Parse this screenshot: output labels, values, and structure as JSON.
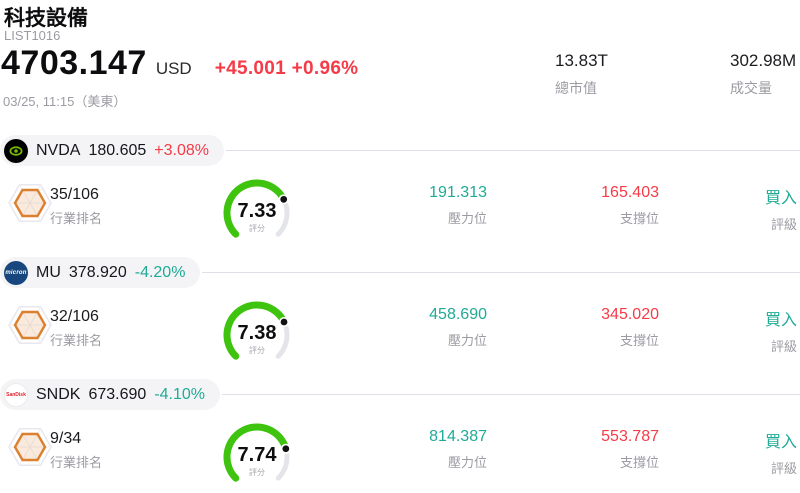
{
  "colors": {
    "up": "#f53b47",
    "down": "#1fab96",
    "pressure": "#1fab96",
    "support": "#f53b47",
    "rating": "#1fab96",
    "gauge_green": "#3ec40e",
    "gauge_track": "#e4e5ea",
    "nvda_green": "#76b900",
    "badge_orange": "#dc7f2e"
  },
  "header": {
    "title": "科技設備",
    "list_id": "LIST1016",
    "price": "4703.147",
    "currency": "USD",
    "change": "+45.001 +0.96%",
    "timestamp": "03/25, 11:15（美東）",
    "market_cap": {
      "value": "13.83T",
      "label": "總市值"
    },
    "volume": {
      "value": "302.98M",
      "label": "成交量"
    }
  },
  "rows": [
    {
      "symbol": "NVDA",
      "price": "180.605",
      "change": "+3.08%",
      "change_color": "#f53b47",
      "logo_text": "",
      "rank": "35/106",
      "rank_label": "行業排名",
      "score": "7.33",
      "score_label": "評分",
      "pressure": {
        "value": "191.313",
        "label": "壓力位"
      },
      "support": {
        "value": "165.403",
        "label": "支撐位"
      },
      "rating": {
        "value": "買入",
        "label": "評級"
      }
    },
    {
      "symbol": "MU",
      "price": "378.920",
      "change": "-4.20%",
      "change_color": "#1fab96",
      "logo_text": "micron",
      "rank": "32/106",
      "rank_label": "行業排名",
      "score": "7.38",
      "score_label": "評分",
      "pressure": {
        "value": "458.690",
        "label": "壓力位"
      },
      "support": {
        "value": "345.020",
        "label": "支撐位"
      },
      "rating": {
        "value": "買入",
        "label": "評級"
      }
    },
    {
      "symbol": "SNDK",
      "price": "673.690",
      "change": "-4.10%",
      "change_color": "#1fab96",
      "logo_text": "SanDisk",
      "rank": "9/34",
      "rank_label": "行業排名",
      "score": "7.74",
      "score_label": "評分",
      "pressure": {
        "value": "814.387",
        "label": "壓力位"
      },
      "support": {
        "value": "553.787",
        "label": "支撐位"
      },
      "rating": {
        "value": "買入",
        "label": "評級"
      }
    }
  ]
}
